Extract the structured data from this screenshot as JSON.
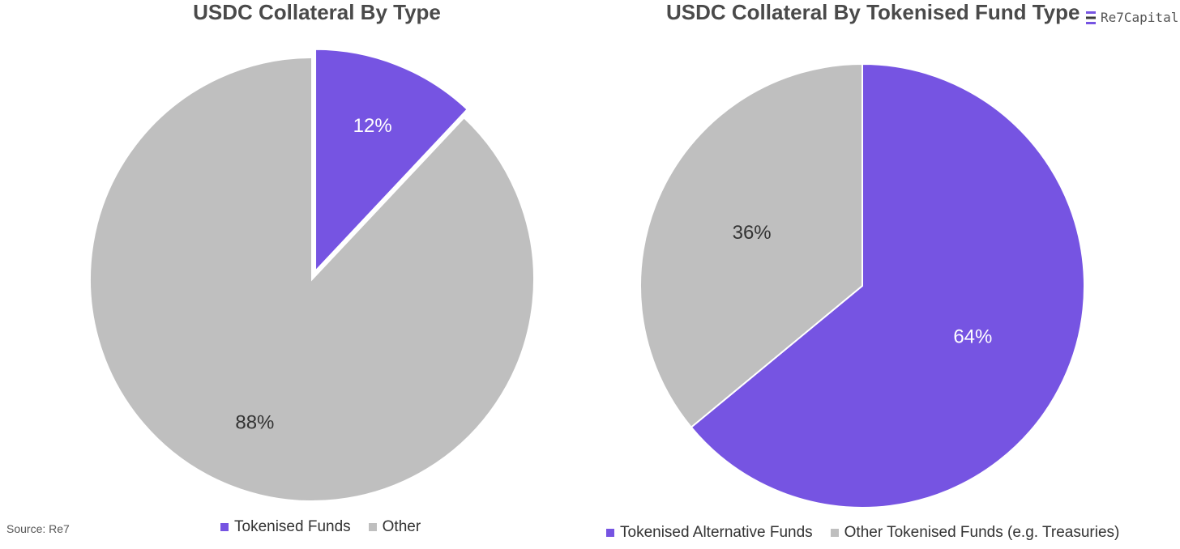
{
  "brand": {
    "logo_text": "Re7Capital",
    "logo_icon": "re7-stack-icon",
    "accent": "#7654E2"
  },
  "source": "Source: Re7",
  "colors": {
    "purple": "#7654E2",
    "gray": "#BFBFBF",
    "label_dark": "#333333",
    "label_light": "#FFFFFF"
  },
  "chart_data": [
    {
      "type": "pie",
      "title": "USDC Collateral By Type",
      "legend_position": "bottom",
      "slices": [
        {
          "label": "Tokenised Funds",
          "value": 12,
          "display": "12%",
          "color": "#7654E2",
          "exploded": true
        },
        {
          "label": "Other",
          "value": 88,
          "display": "88%",
          "color": "#BFBFBF",
          "exploded": false
        }
      ]
    },
    {
      "type": "pie",
      "title": "USDC Collateral By Tokenised Fund Type",
      "legend_position": "bottom",
      "slices": [
        {
          "label": "Tokenised Alternative Funds",
          "value": 64,
          "display": "64%",
          "color": "#7654E2",
          "exploded": false
        },
        {
          "label": "Other Tokenised Funds (e.g. Treasuries)",
          "value": 36,
          "display": "36%",
          "color": "#BFBFBF",
          "exploded": false
        }
      ]
    }
  ]
}
